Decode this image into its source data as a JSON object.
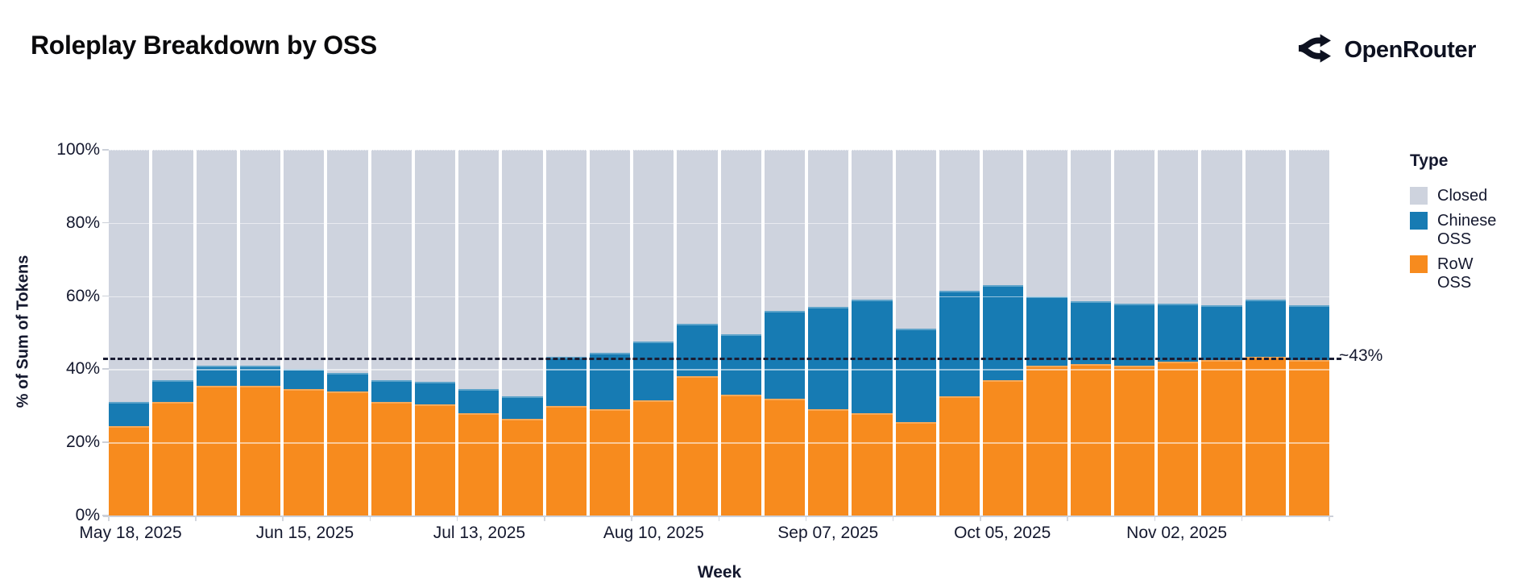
{
  "header": {
    "title": "Roleplay Breakdown by OSS",
    "brand": "OpenRouter"
  },
  "chart_data": {
    "type": "bar",
    "stacked": true,
    "title": "Roleplay Breakdown by OSS",
    "xlabel": "Week",
    "ylabel": "% of Sum of Tokens",
    "ylim": [
      0,
      100
    ],
    "ytick_values": [
      0,
      20,
      40,
      60,
      80,
      100
    ],
    "ytick_labels": [
      "0%",
      "20%",
      "40%",
      "60%",
      "80%",
      "100%"
    ],
    "gridline_values": [
      20,
      40,
      60,
      80
    ],
    "xtick_every": 4,
    "categories": [
      "May 18, 2025",
      "May 25, 2025",
      "Jun 01, 2025",
      "Jun 08, 2025",
      "Jun 15, 2025",
      "Jun 22, 2025",
      "Jun 29, 2025",
      "Jul 06, 2025",
      "Jul 13, 2025",
      "Jul 20, 2025",
      "Jul 27, 2025",
      "Aug 03, 2025",
      "Aug 10, 2025",
      "Aug 17, 2025",
      "Aug 24, 2025",
      "Aug 31, 2025",
      "Sep 07, 2025",
      "Sep 14, 2025",
      "Sep 21, 2025",
      "Sep 28, 2025",
      "Oct 05, 2025",
      "Oct 12, 2025",
      "Oct 19, 2025",
      "Oct 26, 2025",
      "Nov 02, 2025",
      "Nov 09, 2025",
      "Nov 16, 2025",
      "Nov 23, 2025"
    ],
    "legend": {
      "title": "Type",
      "position": "right"
    },
    "series": [
      {
        "name": "Closed",
        "color": "#ced3de",
        "values": [
          69,
          63,
          59,
          59,
          60,
          61,
          63,
          63.5,
          65.5,
          67.5,
          56.5,
          55.5,
          52.5,
          47.5,
          50.5,
          44,
          43,
          41,
          49,
          38.5,
          37,
          40,
          41.5,
          42,
          42,
          42.5,
          41,
          42.5
        ]
      },
      {
        "name": "Chinese OSS",
        "color": "#177bb3",
        "values": [
          6.5,
          6,
          5.5,
          5.5,
          5.5,
          5,
          6,
          6,
          6.5,
          6,
          13.5,
          15.5,
          16,
          14.5,
          16.5,
          24,
          28,
          31,
          25.5,
          29,
          26,
          19,
          17,
          17,
          16,
          15,
          15.5,
          15
        ]
      },
      {
        "name": "RoW OSS",
        "color": "#f78b1e",
        "values": [
          24.5,
          31,
          35.5,
          35.5,
          34.5,
          34,
          31,
          30.5,
          28,
          26.5,
          30,
          29,
          31.5,
          38,
          33,
          32,
          29,
          28,
          25.5,
          32.5,
          37,
          41,
          41.5,
          41,
          42,
          42.5,
          43.5,
          42.5
        ]
      }
    ],
    "reference_line": {
      "value": 43,
      "label": "~43%",
      "style": "dashed",
      "color": "#1a1d33"
    }
  }
}
